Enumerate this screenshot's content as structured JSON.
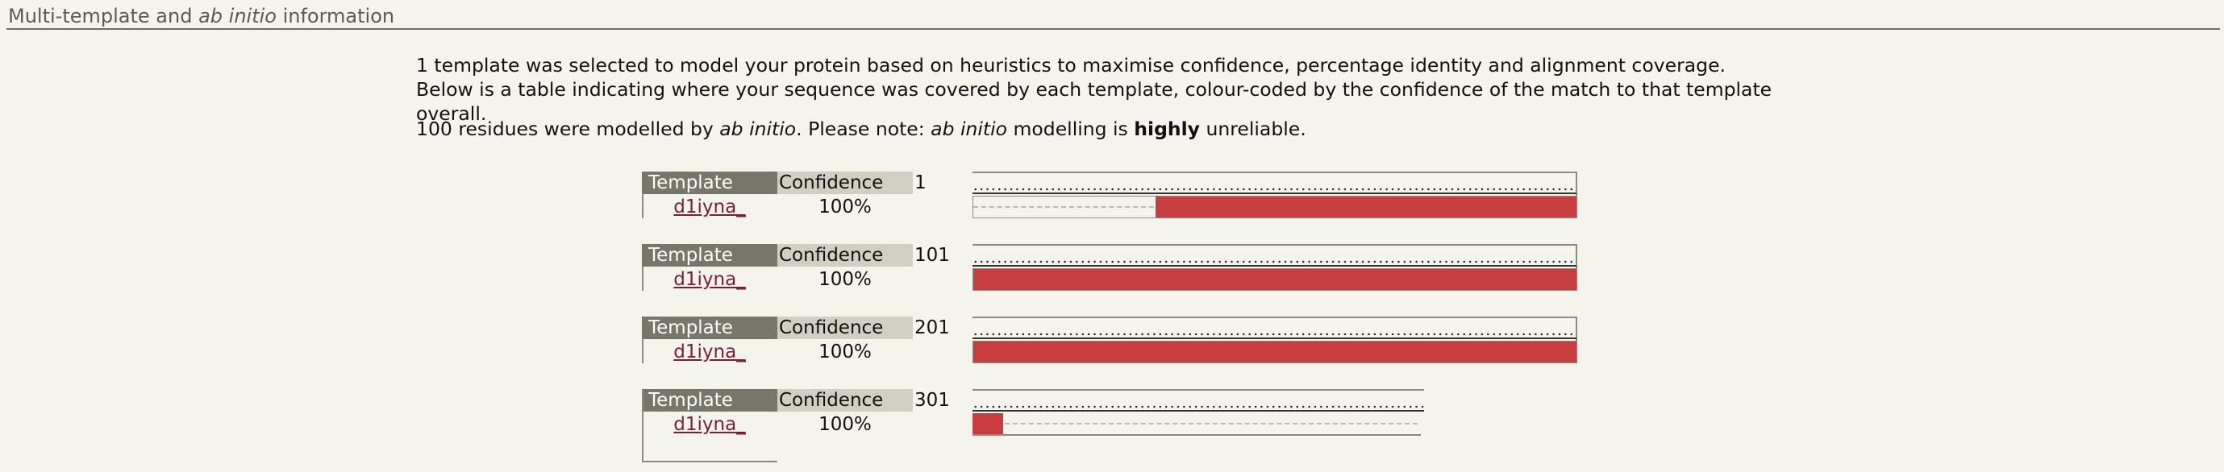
{
  "section": {
    "title_pre": "Multi-template and ",
    "title_em": "ab initio",
    "title_post": " information"
  },
  "description": "1 template was selected to model your protein based on heuristics to maximise confidence, percentage identity and alignment coverage. Below is a table indicating where your sequence was covered by each template, colour-coded by the confidence of the match to that template overall.",
  "note": {
    "pre": "100 residues were modelled by ",
    "em1": "ab initio",
    "mid": ". Please note: ",
    "em2": "ab initio",
    "mid2": " modelling is ",
    "strong": "highly",
    "post": " unreliable."
  },
  "table_headers": {
    "template": "Template",
    "confidence": "Confidence"
  },
  "colors": {
    "high_confidence": "#c83e3e",
    "header_dark": "#76766a",
    "header_light": "#cfcfc3",
    "link": "#7a1d3a"
  },
  "blocks": [
    {
      "start": "1",
      "template": "d1iyna_",
      "confidence": "100%",
      "coverage_from_fraction": 0.3
    },
    {
      "start": "101",
      "template": "d1iyna_",
      "confidence": "100%",
      "coverage_from_fraction": 0.0
    },
    {
      "start": "201",
      "template": "d1iyna_",
      "confidence": "100%",
      "coverage_from_fraction": 0.0
    },
    {
      "start": "301",
      "template": "d1iyna_",
      "confidence": "100%",
      "coverage_from_fraction": 0.0,
      "coverage_to_fraction": 0.07
    }
  ]
}
